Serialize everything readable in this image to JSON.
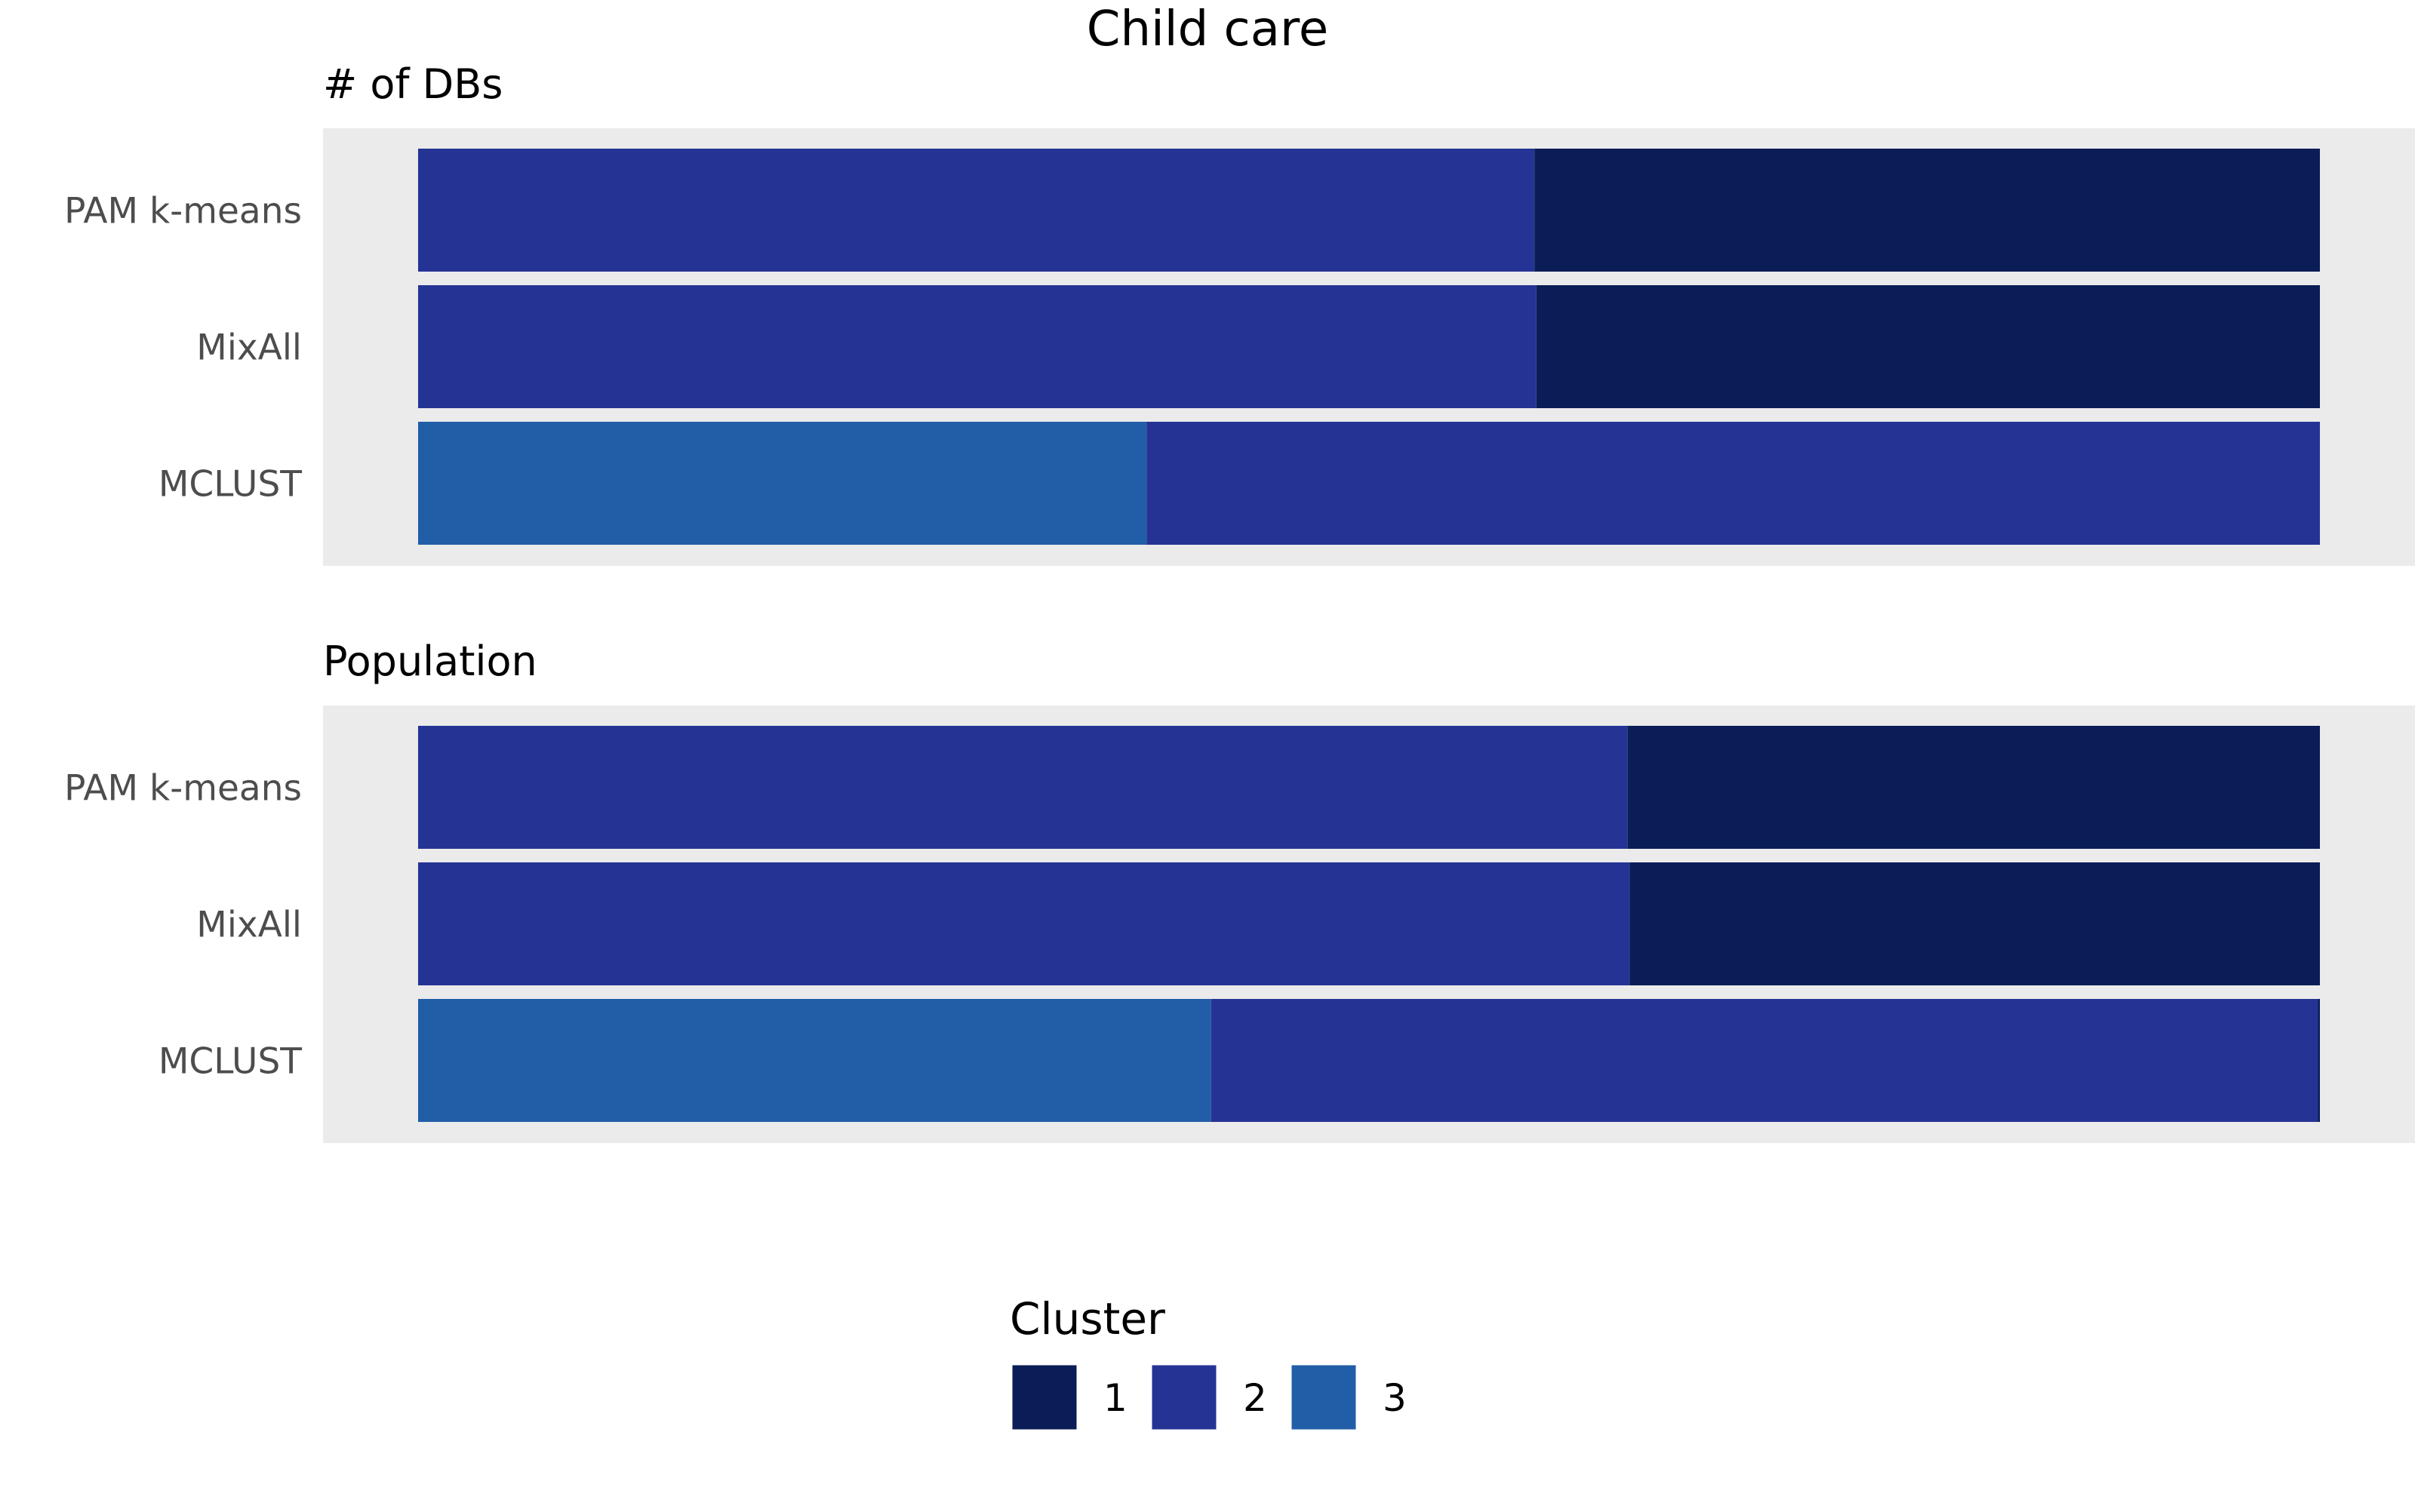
{
  "chart_data": {
    "type": "bar",
    "orientation": "horizontal",
    "stacked": true,
    "normalized": true,
    "title": "Child care",
    "xlim": [
      0,
      1
    ],
    "grid": false,
    "legend_position": "bottom",
    "legend": {
      "title": "Cluster",
      "entries": [
        {
          "label": "1",
          "color": "#0a1d56"
        },
        {
          "label": "2",
          "color": "#253494"
        },
        {
          "label": "3",
          "color": "#225ea8"
        }
      ]
    },
    "panels": [
      {
        "title": "# of DBs",
        "rows": [
          {
            "label": "PAM k-means",
            "segments": [
              {
                "cluster": "2",
                "value": 0.587
              },
              {
                "cluster": "1",
                "value": 0.413
              }
            ]
          },
          {
            "label": "MixAll",
            "segments": [
              {
                "cluster": "2",
                "value": 0.588
              },
              {
                "cluster": "1",
                "value": 0.412
              }
            ]
          },
          {
            "label": "MCLUST",
            "segments": [
              {
                "cluster": "3",
                "value": 0.383
              },
              {
                "cluster": "2",
                "value": 0.617
              }
            ]
          }
        ]
      },
      {
        "title": "Population",
        "rows": [
          {
            "label": "PAM k-means",
            "segments": [
              {
                "cluster": "2",
                "value": 0.636
              },
              {
                "cluster": "1",
                "value": 0.364
              }
            ]
          },
          {
            "label": "MixAll",
            "segments": [
              {
                "cluster": "2",
                "value": 0.637
              },
              {
                "cluster": "1",
                "value": 0.363
              }
            ]
          },
          {
            "label": "MCLUST",
            "segments": [
              {
                "cluster": "3",
                "value": 0.417
              },
              {
                "cluster": "2",
                "value": 0.582
              },
              {
                "cluster": "1",
                "value": 0.001
              }
            ]
          }
        ]
      }
    ]
  }
}
